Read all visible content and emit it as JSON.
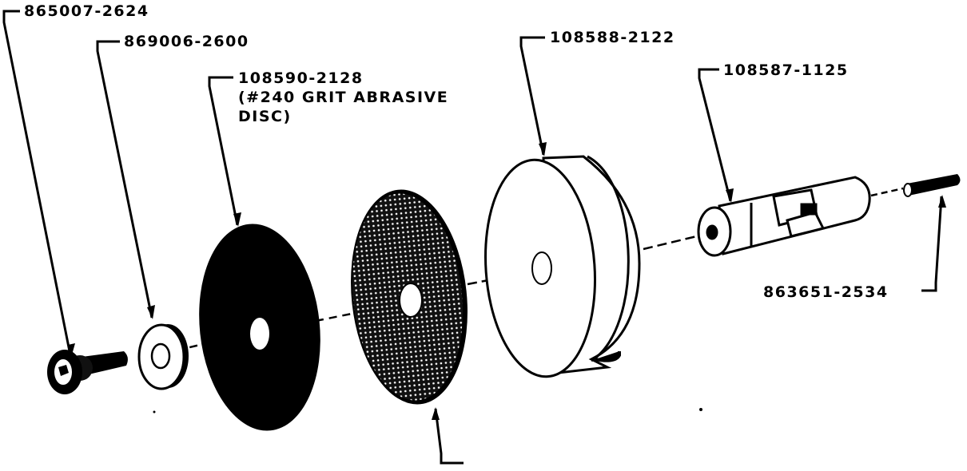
{
  "diagram": {
    "labels": {
      "screw": "865007-2624",
      "washer": "869006-2600",
      "abrasive_disc_line1": "108590-2128",
      "abrasive_disc_line2": "(#240 GRIT ABRASIVE",
      "abrasive_disc_line3": "DISC)",
      "wheel": "108588-2122",
      "adapter": "108587-1125",
      "pin": "863651-2534"
    }
  }
}
